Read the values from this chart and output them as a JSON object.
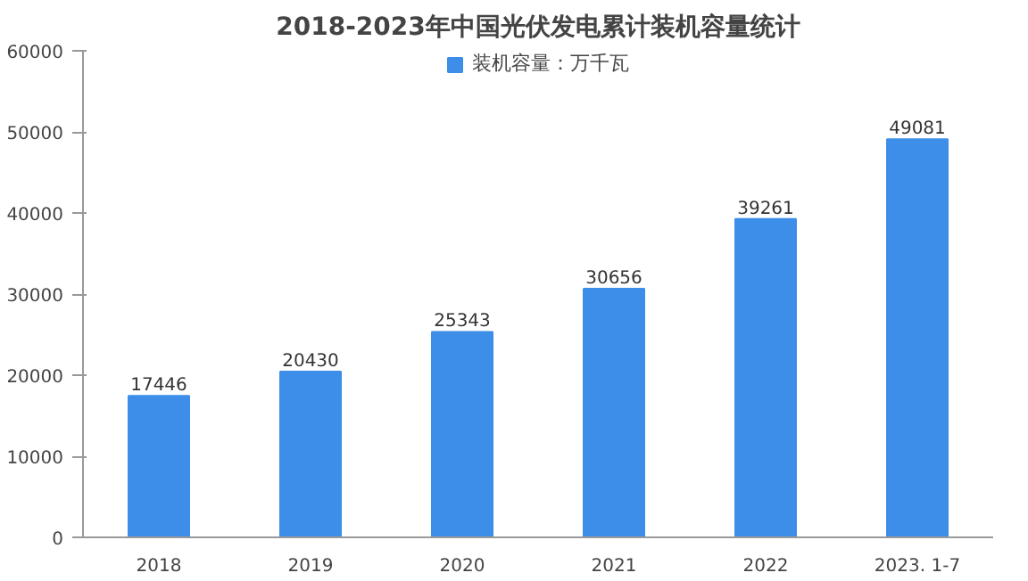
{
  "chart_data": {
    "type": "bar",
    "title": "2018-2023年中国光伏发电累计装机容量统计",
    "categories": [
      "2018",
      "2019",
      "2020",
      "2021",
      "2022",
      "2023. 1-7"
    ],
    "series": [
      {
        "name": "装机容量：万千瓦",
        "color": "#3d8ee8",
        "values": [
          17446,
          20430,
          25343,
          30656,
          39261,
          49081
        ]
      }
    ],
    "ylim": [
      0,
      60000
    ],
    "yticks": [
      0,
      10000,
      20000,
      30000,
      40000,
      50000,
      60000
    ],
    "data_labels": true,
    "grid": false,
    "legend": "top"
  }
}
